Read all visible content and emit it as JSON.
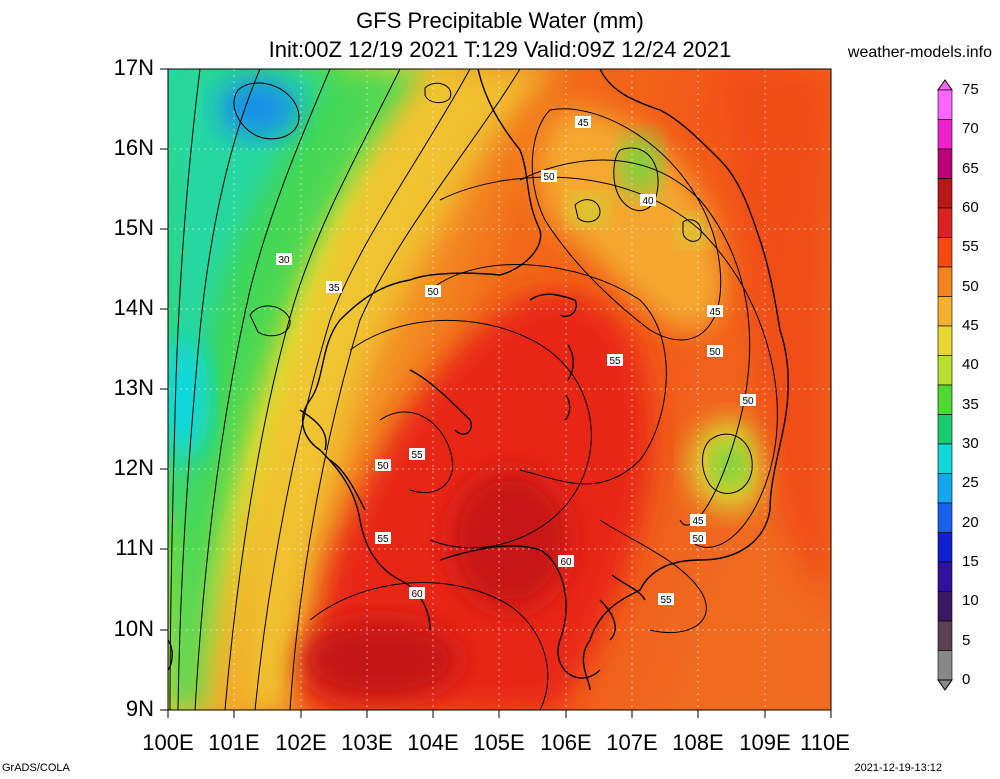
{
  "header": {
    "title_line1": "GFS Precipitable Water (mm)",
    "title_line2": "Init:00Z 12/19 2021 T:129 Valid:09Z 12/24 2021",
    "site": "weather-models.info"
  },
  "footer": {
    "credit": "GrADS/COLA",
    "timestamp": "2021-12-19-13:12"
  },
  "map": {
    "lat_labels": [
      "17N",
      "16N",
      "15N",
      "14N",
      "13N",
      "12N",
      "11N",
      "10N",
      "9N"
    ],
    "lon_labels": [
      "100E",
      "101E",
      "102E",
      "103E",
      "104E",
      "105E",
      "106E",
      "107E",
      "108E",
      "109E",
      "110E"
    ],
    "contour_labels": [
      "45",
      "50",
      "40",
      "30",
      "35",
      "50",
      "45",
      "55",
      "50",
      "50",
      "55",
      "50",
      "45",
      "50",
      "55",
      "60",
      "60",
      "55"
    ]
  },
  "colorbar": {
    "labels": [
      "75",
      "70",
      "65",
      "60",
      "55",
      "50",
      "45",
      "40",
      "35",
      "30",
      "25",
      "20",
      "15",
      "10",
      "5",
      "0"
    ],
    "colors": [
      "#ff66ff",
      "#ee22cc",
      "#bb0077",
      "#b81818",
      "#dd2222",
      "#f24a10",
      "#f2841c",
      "#f5b030",
      "#e8d830",
      "#b8e030",
      "#4ed830",
      "#18cc70",
      "#10d8d8",
      "#14a8f0",
      "#1a60f0",
      "#1020d0",
      "#3010a0",
      "#3a1860",
      "#5a4050",
      "#888888"
    ]
  }
}
